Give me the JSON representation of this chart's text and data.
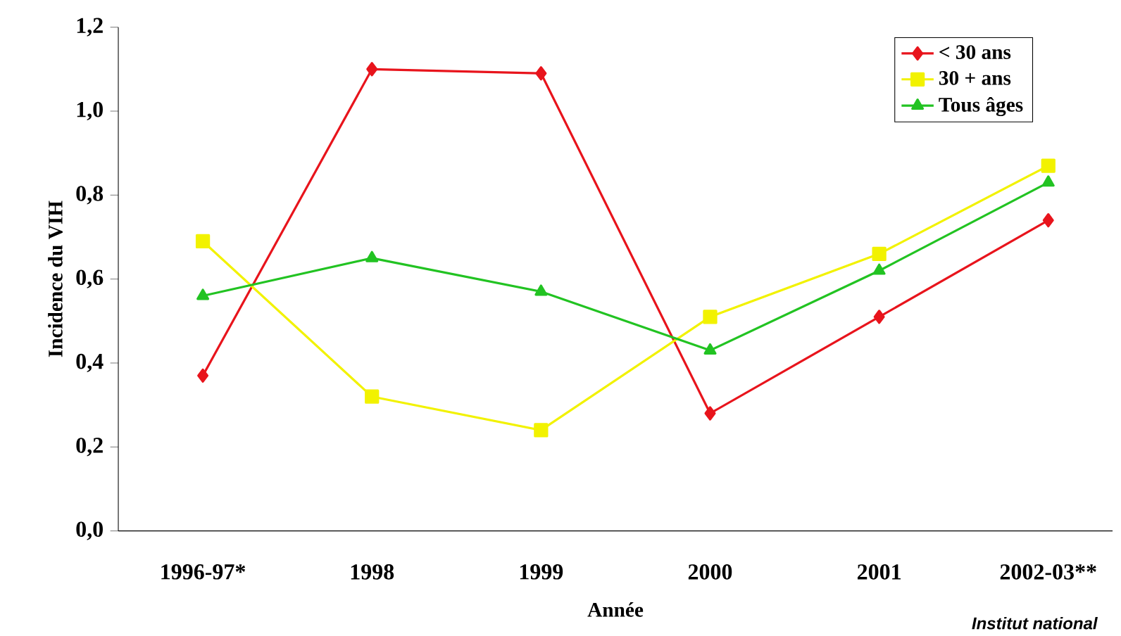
{
  "chart_data": {
    "type": "line",
    "xlabel": "Année",
    "ylabel": "Incidence du VIH",
    "categories": [
      "1996-97*",
      "1998",
      "1999",
      "2000",
      "2001",
      "2002-03**"
    ],
    "series": [
      {
        "name": "< 30 ans",
        "color": "#e8141c",
        "marker": "diamond",
        "values": [
          0.37,
          1.1,
          1.09,
          0.28,
          0.51,
          0.74
        ]
      },
      {
        "name": "30 + ans",
        "color": "#f2f200",
        "marker": "square",
        "values": [
          0.69,
          0.32,
          0.24,
          0.51,
          0.66,
          0.87
        ]
      },
      {
        "name": "Tous âges",
        "color": "#22c322",
        "marker": "triangle",
        "values": [
          0.56,
          0.65,
          0.57,
          0.43,
          0.62,
          0.83
        ]
      }
    ],
    "ylim": [
      0,
      1.2
    ],
    "yticks": [
      {
        "value": 0,
        "label": "0,0"
      },
      {
        "value": 0.2,
        "label": "0,2"
      },
      {
        "value": 0.4,
        "label": "0,4"
      },
      {
        "value": 0.6,
        "label": "0,6"
      },
      {
        "value": 0.8,
        "label": "0,8"
      },
      {
        "value": 1.0,
        "label": "1,0"
      },
      {
        "value": 1.2,
        "label": "1,2"
      }
    ],
    "legend": "top right",
    "grid": false,
    "annotations": [
      "Institut national"
    ]
  }
}
